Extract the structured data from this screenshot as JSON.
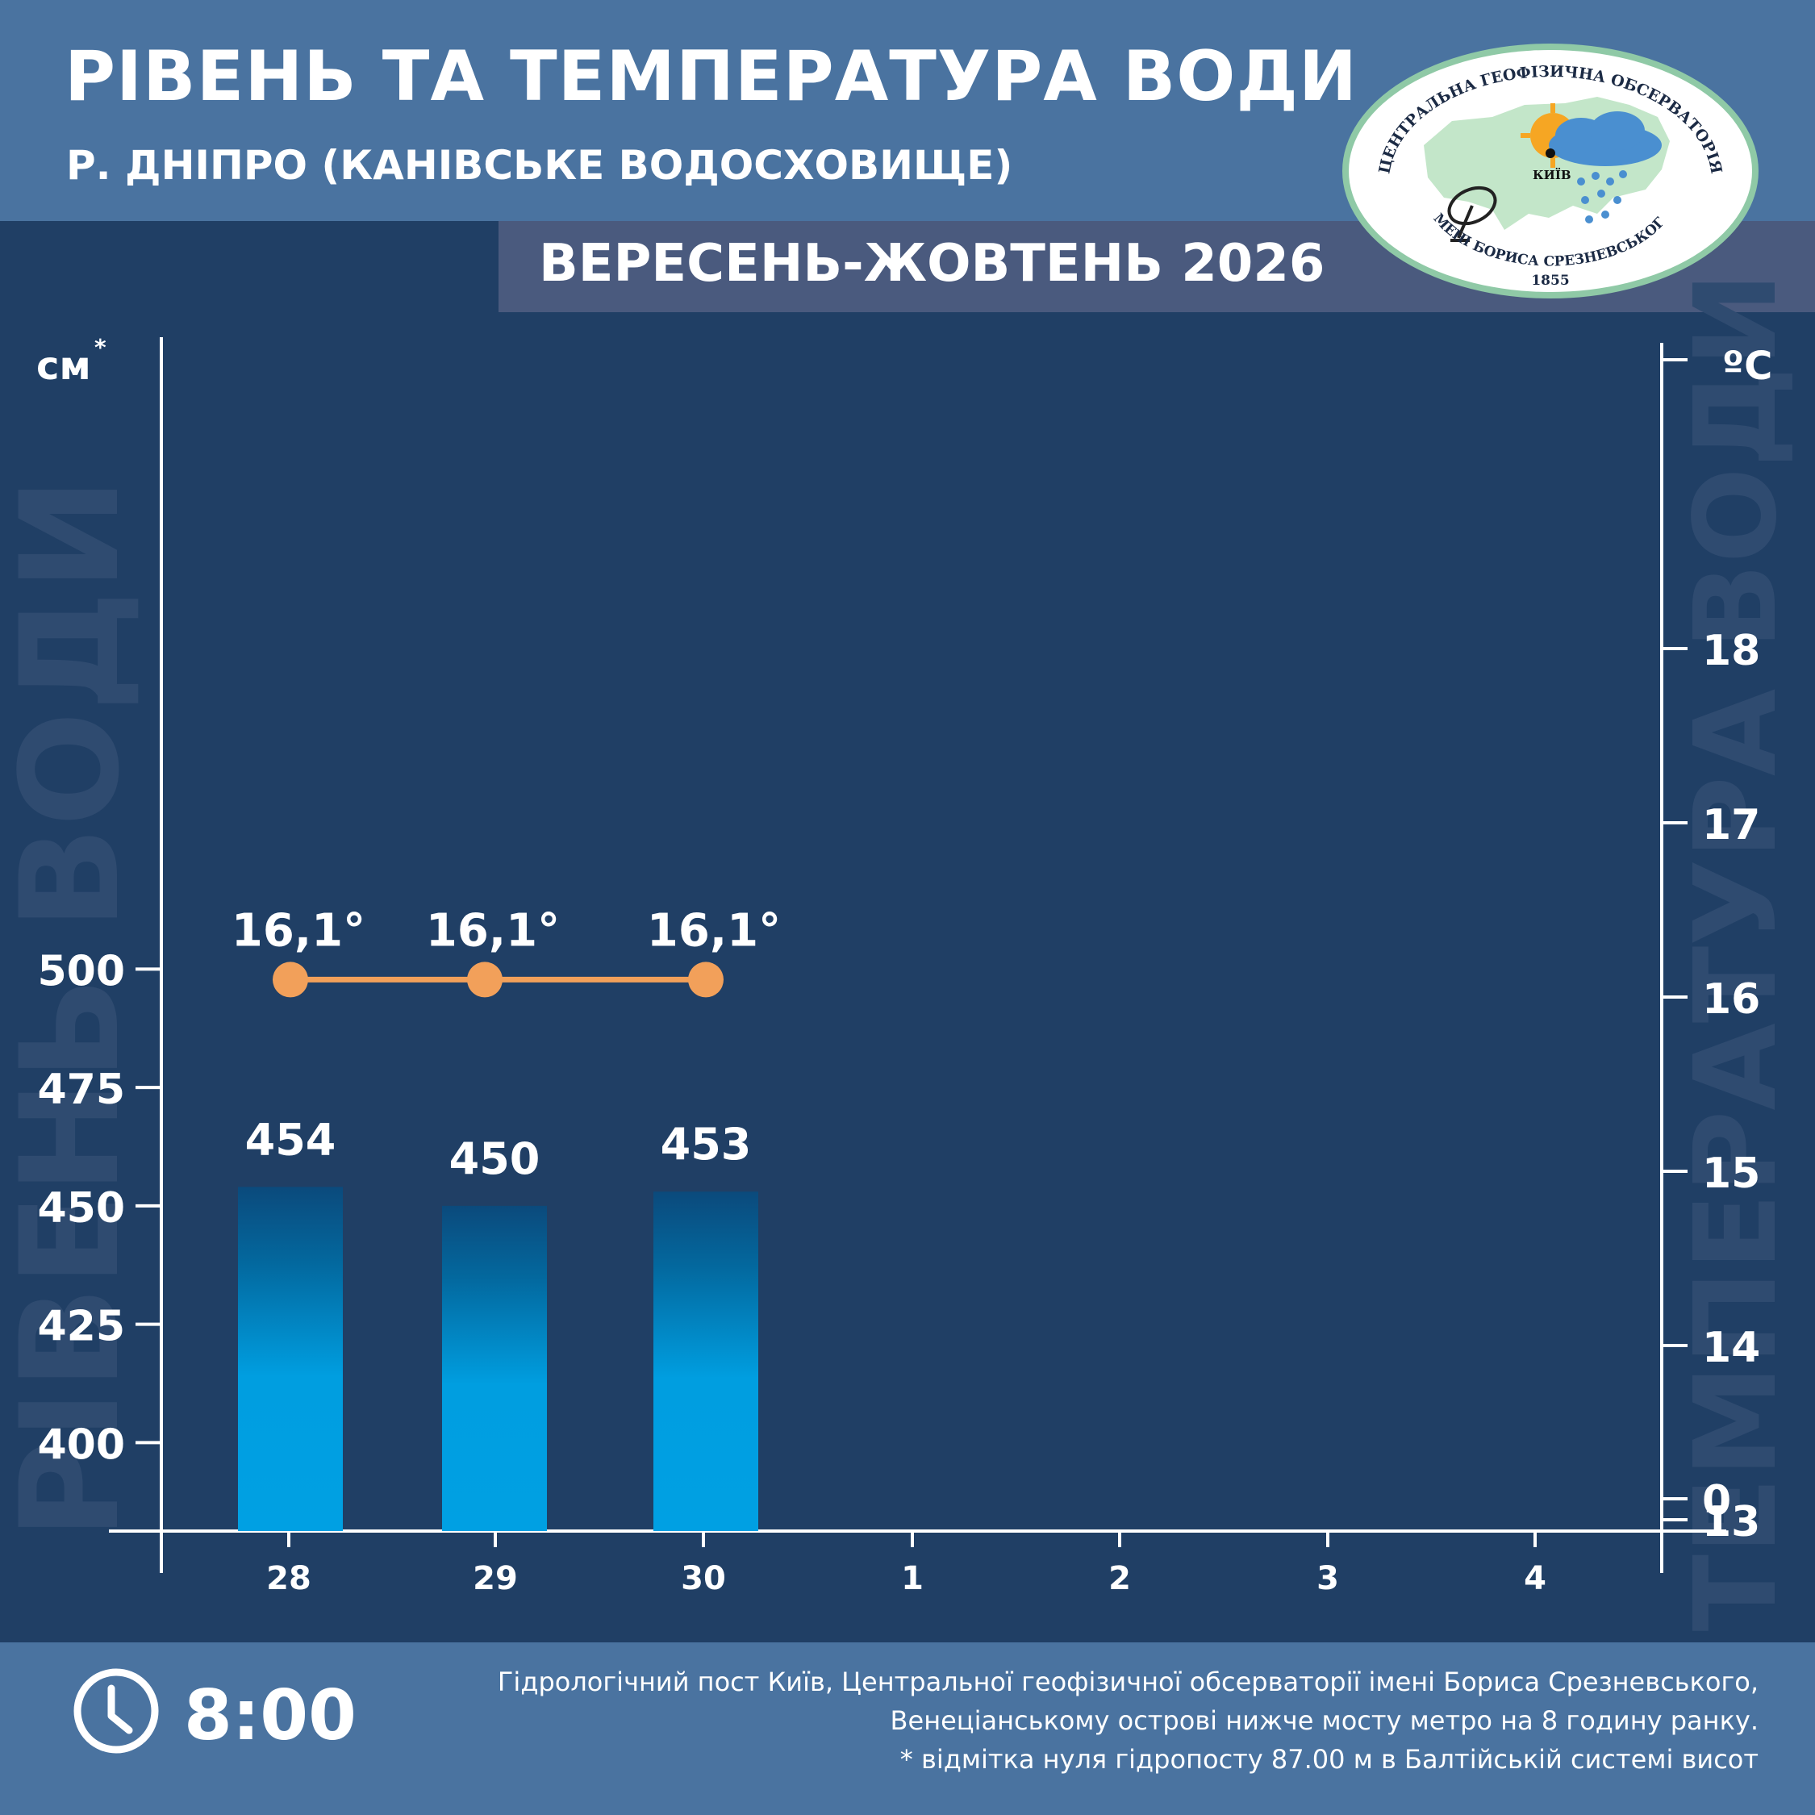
{
  "header": {
    "title": "РІВЕНЬ ТА ТЕМПЕРАТУРА ВОДИ",
    "subtitle": "Р. ДНІПРО (КАНІВСЬКЕ ВОДОСХОВИЩЕ)",
    "period": "ВЕРЕСЕНЬ-ЖОВТЕНЬ 2026"
  },
  "logo": {
    "top_text": "ЦЕНТРАЛЬНА ГЕОФІЗИЧНА ОБСЕРВАТОРІЯ",
    "bottom_text": "ІМЕНІ БОРИСА СРЕЗНЕВСЬКОГО",
    "year": "1855",
    "city": "КИЇВ"
  },
  "watermarks": {
    "left": "РІВЕНЬ ВОДИ",
    "right": "ТЕМПЕРАТУРА ВОДИ"
  },
  "footer": {
    "time": "8:00",
    "notes": [
      "Гідрологічний пост Київ, Центральної геофізичної обсерваторії імені Бориса Срезневського,",
      "Венеціанському острові нижче мосту метро  на 8 годину ранку.",
      "* відмітка нуля гідропосту 87.00 м в Балтійській системі висот"
    ]
  },
  "colors": {
    "background": "#203f65",
    "header": "#4a73a0",
    "bar_top": "#035d8c",
    "bar_bottom": "#00a0e3",
    "temperature_line": "#f2a05a",
    "axis": "#ffffff"
  },
  "chart_data": {
    "type": "bar",
    "categories": [
      "28",
      "29",
      "30",
      "1",
      "2",
      "3",
      "4"
    ],
    "series": [
      {
        "values": [
          454,
          450,
          453,
          null,
          null,
          null,
          null
        ]
      },
      {
        "values": [
          16.1,
          16.1,
          16.1,
          null,
          null,
          null,
          null
        ]
      }
    ],
    "value_labels": [
      "454",
      "450",
      "453"
    ],
    "temperature_labels": [
      "16,1°",
      "16,1°",
      "16,1°"
    ],
    "left_axis": {
      "unit": "см",
      "unit_mark": "*",
      "ticks": [
        "400",
        "425",
        "450",
        "475",
        "500"
      ],
      "range": [
        382,
        570
      ]
    },
    "right_axis": {
      "unit": "ºC",
      "ticks": [
        "0",
        "13",
        "14",
        "15",
        "16",
        "17",
        "18"
      ]
    }
  }
}
